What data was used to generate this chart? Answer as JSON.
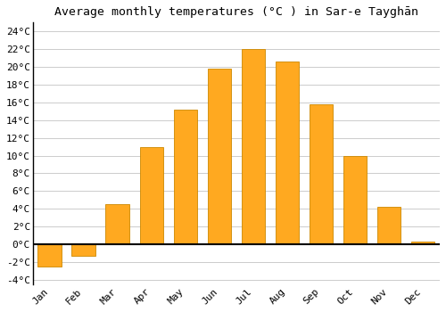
{
  "title": "Average monthly temperatures (°C ) in Sar-e Tayghān",
  "months": [
    "Jan",
    "Feb",
    "Mar",
    "Apr",
    "May",
    "Jun",
    "Jul",
    "Aug",
    "Sep",
    "Oct",
    "Nov",
    "Dec"
  ],
  "values": [
    -2.5,
    -1.3,
    4.5,
    11.0,
    15.2,
    19.8,
    22.0,
    20.6,
    15.8,
    10.0,
    4.2,
    0.3
  ],
  "bar_color": "#FFA920",
  "bar_edge_color": "#CC8800",
  "ylim": [
    -4.5,
    25
  ],
  "yticks": [
    -4,
    -2,
    0,
    2,
    4,
    6,
    8,
    10,
    12,
    14,
    16,
    18,
    20,
    22,
    24
  ],
  "ytick_labels": [
    "-4°C",
    "-2°C",
    "0°C",
    "2°C",
    "4°C",
    "6°C",
    "8°C",
    "10°C",
    "12°C",
    "14°C",
    "16°C",
    "18°C",
    "20°C",
    "22°C",
    "24°C"
  ],
  "grid_color": "#cccccc",
  "background_color": "#ffffff",
  "title_fontsize": 9.5,
  "tick_fontsize": 8,
  "bar_width": 0.7
}
